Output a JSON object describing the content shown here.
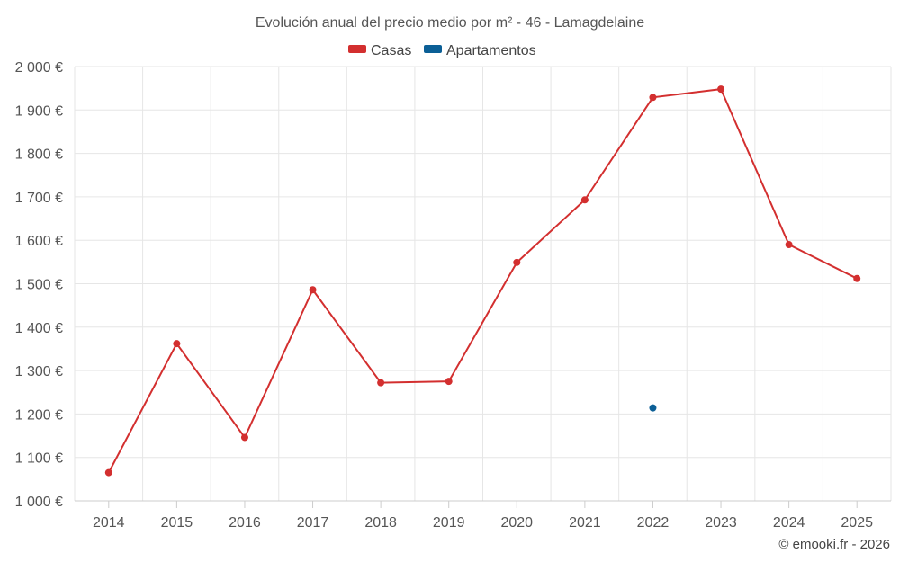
{
  "chart_data": {
    "type": "line",
    "title": "Evolución anual del precio medio por m² - 46 - Lamagdelaine",
    "x": [
      "2014",
      "2015",
      "2016",
      "2017",
      "2018",
      "2019",
      "2020",
      "2021",
      "2022",
      "2023",
      "2024",
      "2025"
    ],
    "ylim": [
      1000,
      2000
    ],
    "y_ticks": [
      1000,
      1100,
      1200,
      1300,
      1400,
      1500,
      1600,
      1700,
      1800,
      1900,
      2000
    ],
    "y_tick_labels": [
      "1 000 €",
      "1 100 €",
      "1 200 €",
      "1 300 €",
      "1 400 €",
      "1 500 €",
      "1 600 €",
      "1 700 €",
      "1 800 €",
      "1 900 €",
      "2 000 €"
    ],
    "grid": true,
    "legend_position": "top-center",
    "series": [
      {
        "name": "Casas",
        "color": "#d32f2f",
        "values": [
          1065,
          1362,
          1146,
          1486,
          1272,
          1275,
          1549,
          1693,
          1929,
          1948,
          1590,
          1512
        ]
      },
      {
        "name": "Apartamentos",
        "color": "#0b5f96",
        "values": [
          null,
          null,
          null,
          null,
          null,
          null,
          null,
          null,
          1214,
          null,
          null,
          null
        ]
      }
    ]
  },
  "credit": "© emooki.fr - 2026"
}
